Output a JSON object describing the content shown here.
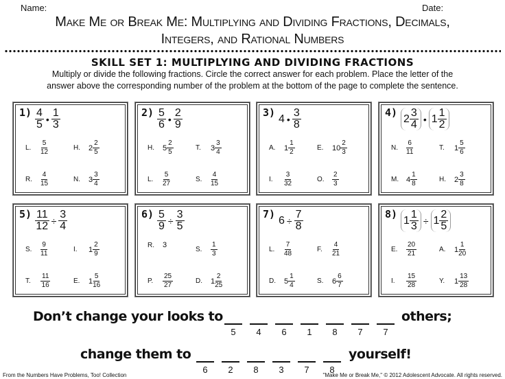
{
  "header": {
    "name_label": "Name:",
    "date_label": "Date:",
    "title_line1": "Make Me or Break Me: Multiplying and Dividing Fractions, Decimals,",
    "title_line2": "Integers, and Rational Numbers"
  },
  "skill_title": "SKILL SET 1: MULTIPLYING AND DIVIDING FRACTIONS",
  "instructions_line1": "Multiply or divide the following fractions. Circle the correct answer for each problem. Place the letter of the",
  "instructions_line2": "answer above the corresponding number of the problem at the bottom of the page to complete the sentence.",
  "problems": [
    {
      "number": "1)",
      "expr": [
        {
          "n": "4",
          "d": "5"
        },
        {
          "op": "•"
        },
        {
          "n": "1",
          "d": "3"
        }
      ],
      "answers": [
        {
          "letter": "L.",
          "n": "5",
          "d": "12"
        },
        {
          "letter": "H.",
          "w": "2",
          "n": "2",
          "d": "5"
        },
        {
          "letter": "R.",
          "n": "4",
          "d": "15"
        },
        {
          "letter": "N.",
          "w": "3",
          "n": "3",
          "d": "4"
        }
      ]
    },
    {
      "number": "2)",
      "expr": [
        {
          "n": "5",
          "d": "6"
        },
        {
          "op": "•"
        },
        {
          "n": "2",
          "d": "9"
        }
      ],
      "answers": [
        {
          "letter": "H.",
          "w": "5",
          "n": "2",
          "d": "5"
        },
        {
          "letter": "T.",
          "w": "3",
          "n": "3",
          "d": "4"
        },
        {
          "letter": "L.",
          "n": "5",
          "d": "27"
        },
        {
          "letter": "S.",
          "n": "4",
          "d": "15"
        }
      ]
    },
    {
      "number": "3)",
      "expr": [
        {
          "w": "4"
        },
        {
          "op": "•"
        },
        {
          "n": "3",
          "d": "8"
        }
      ],
      "answers": [
        {
          "letter": "A.",
          "w": "1",
          "n": "1",
          "d": "2"
        },
        {
          "letter": "E.",
          "w": "10",
          "n": "2",
          "d": "3"
        },
        {
          "letter": "I.",
          "n": "3",
          "d": "32"
        },
        {
          "letter": "O.",
          "n": "2",
          "d": "3"
        }
      ]
    },
    {
      "number": "4)",
      "expr": [
        {
          "w": "2",
          "n": "3",
          "d": "4",
          "paren": true
        },
        {
          "op": "•"
        },
        {
          "w": "1",
          "n": "1",
          "d": "2",
          "paren": true
        }
      ],
      "answers": [
        {
          "letter": "N.",
          "n": "6",
          "d": "11"
        },
        {
          "letter": "T.",
          "w": "1",
          "n": "5",
          "d": "6"
        },
        {
          "letter": "M.",
          "w": "4",
          "n": "1",
          "d": "8"
        },
        {
          "letter": "H.",
          "w": "2",
          "n": "3",
          "d": "8"
        }
      ]
    },
    {
      "number": "5)",
      "expr": [
        {
          "n": "11",
          "d": "12"
        },
        {
          "op": "÷"
        },
        {
          "n": "3",
          "d": "4"
        }
      ],
      "answers": [
        {
          "letter": "S.",
          "n": "9",
          "d": "11"
        },
        {
          "letter": "I.",
          "w": "1",
          "n": "2",
          "d": "9"
        },
        {
          "letter": "T.",
          "n": "11",
          "d": "16"
        },
        {
          "letter": "E.",
          "w": "1",
          "n": "5",
          "d": "16"
        }
      ]
    },
    {
      "number": "6)",
      "expr": [
        {
          "n": "5",
          "d": "9"
        },
        {
          "op": "÷"
        },
        {
          "n": "3",
          "d": "5"
        }
      ],
      "answers": [
        {
          "letter": "R.",
          "w": "3"
        },
        {
          "letter": "S.",
          "n": "1",
          "d": "3"
        },
        {
          "letter": "P.",
          "n": "25",
          "d": "27"
        },
        {
          "letter": "D.",
          "w": "1",
          "n": "2",
          "d": "25"
        }
      ]
    },
    {
      "number": "7)",
      "expr": [
        {
          "w": "6"
        },
        {
          "op": "÷"
        },
        {
          "n": "7",
          "d": "8"
        }
      ],
      "answers": [
        {
          "letter": "L.",
          "n": "7",
          "d": "48"
        },
        {
          "letter": "F.",
          "n": "4",
          "d": "21"
        },
        {
          "letter": "D.",
          "w": "5",
          "n": "1",
          "d": "4"
        },
        {
          "letter": "S.",
          "w": "6",
          "n": "6",
          "d": "7"
        }
      ]
    },
    {
      "number": "8)",
      "expr": [
        {
          "w": "1",
          "n": "1",
          "d": "3",
          "paren": true
        },
        {
          "op": "÷"
        },
        {
          "w": "1",
          "n": "2",
          "d": "5",
          "paren": true
        }
      ],
      "answers": [
        {
          "letter": "E.",
          "n": "20",
          "d": "21"
        },
        {
          "letter": "A.",
          "w": "1",
          "n": "1",
          "d": "20"
        },
        {
          "letter": "I.",
          "n": "15",
          "d": "28"
        },
        {
          "letter": "Y.",
          "w": "1",
          "n": "13",
          "d": "28"
        }
      ]
    }
  ],
  "sentence": {
    "line1_start": "Don’t change your looks to",
    "line1_numbers": [
      "5",
      "4",
      "6",
      "1",
      "8",
      "7",
      "7"
    ],
    "line1_end": "others;",
    "line2_start": "change them to",
    "line2_numbers": [
      "6",
      "2",
      "8",
      "3",
      "7",
      "8"
    ],
    "line2_end": "yourself!"
  },
  "footer": {
    "left": "From the Numbers Have Problems, Too! Collection",
    "right": "\"Make Me or Break Me,\" © 2012 Adolescent Advocate. All rights reserved."
  }
}
